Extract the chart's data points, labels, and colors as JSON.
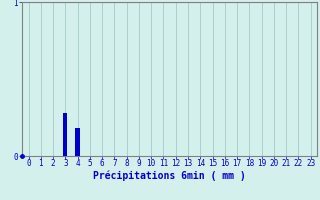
{
  "title": "",
  "xlabel": "Précipitations 6min ( mm )",
  "ylabel": "",
  "background_color": "#d4f0ec",
  "plot_bg_color": "#d4f0ec",
  "bar_color": "#0000cc",
  "grid_color": "#aacfcb",
  "axis_color": "#808080",
  "label_color": "#0000cc",
  "hours": [
    0,
    1,
    2,
    3,
    4,
    5,
    6,
    7,
    8,
    9,
    10,
    11,
    12,
    13,
    14,
    15,
    16,
    17,
    18,
    19,
    20,
    21,
    22,
    23
  ],
  "values": [
    0,
    0,
    0,
    0.28,
    0.18,
    0,
    0,
    0,
    0,
    0,
    0,
    0,
    0,
    0,
    0,
    0,
    0,
    0,
    0,
    0,
    0,
    0,
    0,
    0
  ],
  "ylim": [
    0,
    1
  ],
  "xlim": [
    -0.5,
    23.5
  ],
  "yticks": [
    0,
    1
  ],
  "xticks": [
    0,
    1,
    2,
    3,
    4,
    5,
    6,
    7,
    8,
    9,
    10,
    11,
    12,
    13,
    14,
    15,
    16,
    17,
    18,
    19,
    20,
    21,
    22,
    23
  ],
  "hline_y": 1.0,
  "hline_color": "#ff6666",
  "tick_label_color": "#0000cc",
  "tick_fontsize": 5.5,
  "xlabel_fontsize": 7.0,
  "ytick_label_color": "#0000cc",
  "bar_width": 0.35
}
